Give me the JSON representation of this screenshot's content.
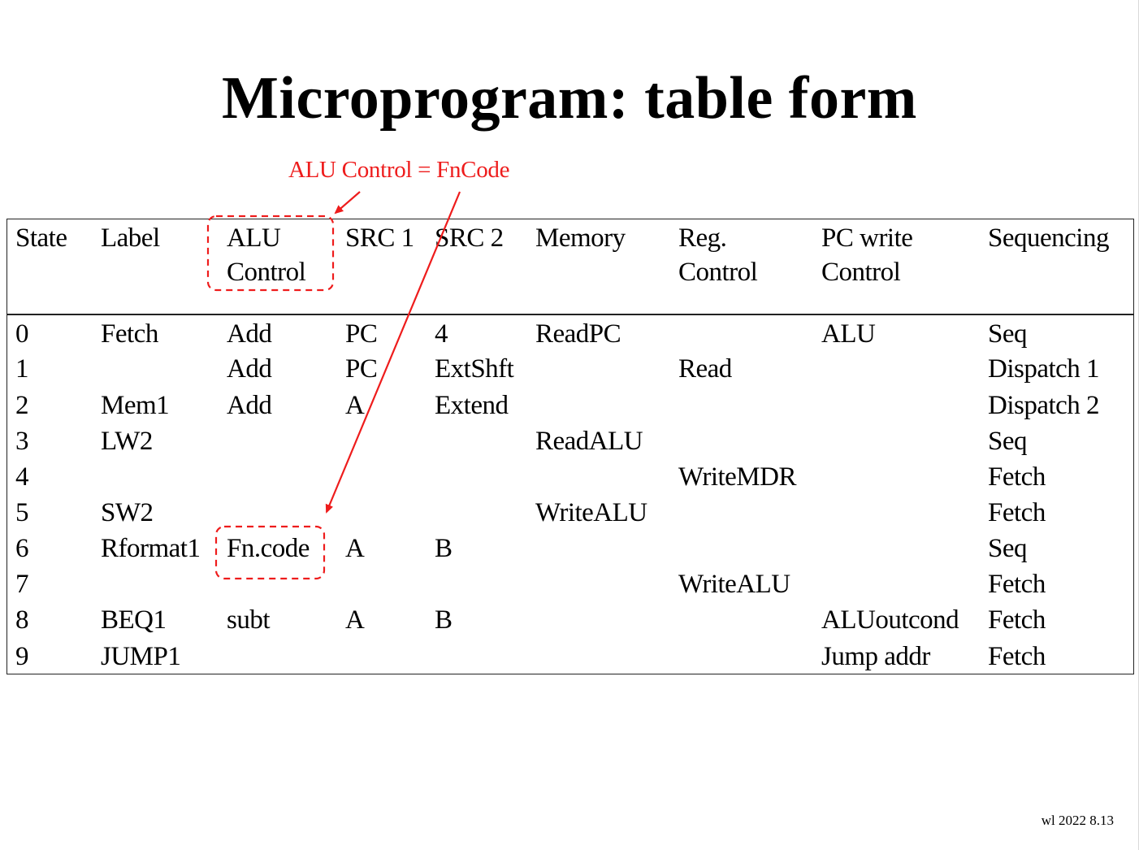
{
  "slide": {
    "title": "Microprogram: table form",
    "annotation": "ALU Control = FnCode",
    "footer": "wl 2022 8.13",
    "accent_color": "#ee1c1c"
  },
  "table": {
    "headers": [
      [
        "State"
      ],
      [
        "Label"
      ],
      [
        "ALU",
        "Control"
      ],
      [
        "SRC 1"
      ],
      [
        "SRC 2"
      ],
      [
        "Memory"
      ],
      [
        "Reg.",
        "Control"
      ],
      [
        "PC write",
        "Control"
      ],
      [
        "Sequencing"
      ]
    ],
    "rows": [
      [
        "0",
        "Fetch",
        "Add",
        "PC",
        "4",
        "ReadPC",
        "",
        "ALU",
        "Seq"
      ],
      [
        "1",
        "",
        "Add",
        "PC",
        "ExtShft",
        "",
        "Read",
        "",
        "Dispatch 1"
      ],
      [
        "2",
        "Mem1",
        "Add",
        "A",
        "Extend",
        "",
        "",
        "",
        "Dispatch 2"
      ],
      [
        "3",
        "LW2",
        "",
        "",
        "",
        "ReadALU",
        "",
        "",
        "Seq"
      ],
      [
        "4",
        "",
        "",
        "",
        "",
        "",
        "WriteMDR",
        "",
        "Fetch"
      ],
      [
        "5",
        "SW2",
        "",
        "",
        "",
        "WriteALU",
        "",
        "",
        "Fetch"
      ],
      [
        "6",
        "Rformat1",
        "Fn.code",
        "A",
        "B",
        "",
        "",
        "",
        "Seq"
      ],
      [
        "7",
        "",
        "",
        "",
        "",
        "",
        "WriteALU",
        "",
        "Fetch"
      ],
      [
        "8",
        "BEQ1",
        "subt",
        "A",
        "B",
        "",
        "",
        "ALUoutcond",
        "Fetch"
      ],
      [
        "9",
        "JUMP1",
        "",
        "",
        "",
        "",
        "",
        "Jump addr",
        "Fetch"
      ]
    ]
  }
}
